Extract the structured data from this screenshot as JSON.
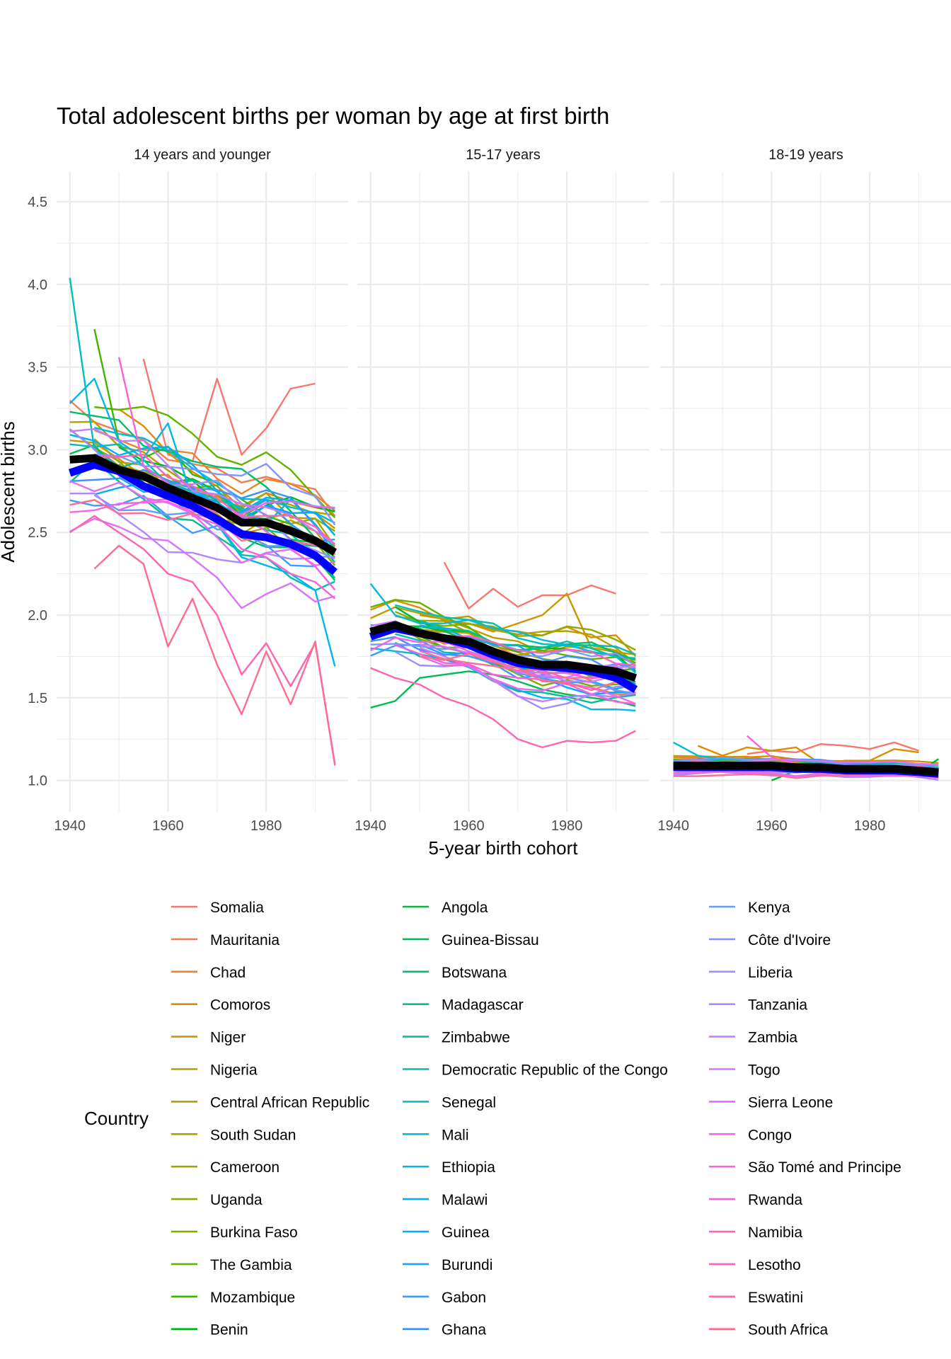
{
  "chart_data": {
    "type": "line",
    "title": "Total adolescent births per woman by age at first birth",
    "xlabel": "5-year birth cohort",
    "ylabel": "Adolescent births",
    "ylim": [
      0.81,
      4.68
    ],
    "xlim": [
      1937.3,
      1996.7
    ],
    "x_ticks": [
      1940,
      1960,
      1980
    ],
    "x_tick_labels": [
      "1940",
      "1960",
      "1980"
    ],
    "y_ticks": [
      1.0,
      1.5,
      2.0,
      2.5,
      3.0,
      3.5,
      4.0,
      4.5
    ],
    "y_tick_labels": [
      "1.0",
      "1.5",
      "2.0",
      "2.5",
      "3.0",
      "3.5",
      "4.0",
      "4.5"
    ],
    "grid": true,
    "legend": {
      "title": "Country",
      "placement": "bottom",
      "columns": 3,
      "entries": [
        {
          "name": "Somalia",
          "color": "#F8766D"
        },
        {
          "name": "Mauritania",
          "color": "#F27D52"
        },
        {
          "name": "Chad",
          "color": "#E9842C"
        },
        {
          "name": "Comoros",
          "color": "#DE8C00"
        },
        {
          "name": "Niger",
          "color": "#D09400"
        },
        {
          "name": "Nigeria",
          "color": "#C09B00"
        },
        {
          "name": "Central African Republic",
          "color": "#B0A100"
        },
        {
          "name": "South Sudan",
          "color": "#B79F00"
        },
        {
          "name": "Cameroon",
          "color": "#A3A500"
        },
        {
          "name": "Uganda",
          "color": "#8EAB00"
        },
        {
          "name": "Burkina Faso",
          "color": "#7CAE00"
        },
        {
          "name": "The Gambia",
          "color": "#64B200"
        },
        {
          "name": "Mozambique",
          "color": "#3DB600"
        },
        {
          "name": "Benin",
          "color": "#00B81F"
        },
        {
          "name": "Angola",
          "color": "#00BA38"
        },
        {
          "name": "Guinea-Bissau",
          "color": "#00BC56"
        },
        {
          "name": "Botswana",
          "color": "#00BE6C"
        },
        {
          "name": "Madagascar",
          "color": "#00C08B"
        },
        {
          "name": "Zimbabwe",
          "color": "#00C0A3"
        },
        {
          "name": "Democratic Republic of the Congo",
          "color": "#00BFB5"
        },
        {
          "name": "Senegal",
          "color": "#00BFC4"
        },
        {
          "name": "Mali",
          "color": "#00BCD8"
        },
        {
          "name": "Ethiopia",
          "color": "#00B8E7"
        },
        {
          "name": "Malawi",
          "color": "#00B0F6"
        },
        {
          "name": "Guinea",
          "color": "#00A9FF"
        },
        {
          "name": "Burundi",
          "color": "#1CA1FF"
        },
        {
          "name": "Gabon",
          "color": "#3D9BFF"
        },
        {
          "name": "Ghana",
          "color": "#3D91FF"
        },
        {
          "name": "Kenya",
          "color": "#619CFF"
        },
        {
          "name": "Côte d'Ivoire",
          "color": "#8494FF"
        },
        {
          "name": "Liberia",
          "color": "#9F8CFF"
        },
        {
          "name": "Tanzania",
          "color": "#B385FF"
        },
        {
          "name": "Zambia",
          "color": "#C77CFF"
        },
        {
          "name": "Togo",
          "color": "#D774FD"
        },
        {
          "name": "Sierra Leone",
          "color": "#E36EF6"
        },
        {
          "name": "Congo",
          "color": "#ED68ED"
        },
        {
          "name": "São Tomé and Principe",
          "color": "#F564E3"
        },
        {
          "name": "Rwanda",
          "color": "#FB61D7"
        },
        {
          "name": "Namibia",
          "color": "#FF62BC"
        },
        {
          "name": "Lesotho",
          "color": "#FF64B0"
        },
        {
          "name": "Eswatini",
          "color": "#FF6A98"
        },
        {
          "name": "South Africa",
          "color": "#FF6C91"
        }
      ]
    },
    "x": [
      1940,
      1945,
      1950,
      1955,
      1960,
      1965,
      1970,
      1975,
      1980,
      1985,
      1990,
      1994
    ],
    "panels": [
      {
        "strip": "14 years and younger",
        "mean_black": [
          2.94,
          2.95,
          2.88,
          2.84,
          2.77,
          2.71,
          2.65,
          2.56,
          2.56,
          2.51,
          2.45,
          2.38
        ],
        "mean_blue": [
          2.86,
          2.91,
          2.87,
          2.78,
          2.72,
          2.66,
          2.58,
          2.49,
          2.47,
          2.43,
          2.36,
          2.26
        ],
        "spread": [
          0.38,
          0.32,
          0.3,
          0.3,
          0.3,
          0.3,
          0.3,
          0.32,
          0.34,
          0.34,
          0.32,
          0.3
        ],
        "series_highlights": [
          {
            "country": "Somalia",
            "values": [
              null,
              null,
              null,
              3.55,
              2.97,
              2.93,
              3.43,
              2.97,
              3.13,
              3.37,
              3.4,
              null
            ]
          },
          {
            "country": "Senegal",
            "values": [
              4.04,
              3.0,
              2.9,
              2.85,
              2.8,
              2.75,
              2.7,
              2.65,
              2.55,
              2.7,
              2.55,
              2.4
            ]
          },
          {
            "country": "Mozambique",
            "values": [
              null,
              3.73,
              3.05,
              2.95,
              3.02,
              2.85,
              2.8,
              2.7,
              2.6,
              2.55,
              2.45,
              2.35
            ]
          },
          {
            "country": "Rwanda",
            "values": [
              null,
              null,
              3.56,
              2.9,
              2.8,
              2.6,
              2.55,
              2.4,
              2.35,
              2.25,
              2.2,
              2.1
            ]
          },
          {
            "country": "Ethiopia",
            "values": [
              3.28,
              3.43,
              3.05,
              2.95,
              3.16,
              2.7,
              2.55,
              2.35,
              2.3,
              2.25,
              2.15,
              1.69
            ]
          },
          {
            "country": "South Africa",
            "values": [
              null,
              2.28,
              2.42,
              2.31,
              1.81,
              2.1,
              1.7,
              1.4,
              1.78,
              1.46,
              1.84,
              1.09
            ]
          },
          {
            "country": "Lesotho",
            "values": [
              2.5,
              2.6,
              2.5,
              2.4,
              2.25,
              2.2,
              2.0,
              1.64,
              1.83,
              1.57,
              1.83,
              1.1
            ]
          }
        ]
      },
      {
        "strip": "15-17 years",
        "mean_black": [
          1.9,
          1.94,
          1.89,
          1.86,
          1.84,
          1.78,
          1.73,
          1.7,
          1.7,
          1.68,
          1.66,
          1.62
        ],
        "mean_blue": [
          1.87,
          1.92,
          1.89,
          1.86,
          1.82,
          1.76,
          1.71,
          1.69,
          1.68,
          1.66,
          1.62,
          1.55
        ],
        "spread": [
          0.16,
          0.15,
          0.15,
          0.15,
          0.15,
          0.16,
          0.17,
          0.18,
          0.19,
          0.19,
          0.18,
          0.16
        ],
        "series_highlights": [
          {
            "country": "Somalia",
            "values": [
              null,
              null,
              null,
              2.32,
              2.04,
              2.16,
              2.05,
              2.12,
              2.12,
              2.18,
              2.13,
              null
            ]
          },
          {
            "country": "Niger",
            "values": [
              null,
              null,
              null,
              null,
              1.95,
              1.9,
              1.95,
              2.0,
              2.13,
              1.8,
              1.78,
              null
            ]
          },
          {
            "country": "Guinea-Bissau",
            "values": [
              1.44,
              1.48,
              1.62,
              1.64,
              1.66,
              1.64,
              1.6,
              1.55,
              1.52,
              1.5,
              1.48,
              1.45
            ]
          },
          {
            "country": "Lesotho",
            "values": [
              1.68,
              1.62,
              1.58,
              1.5,
              1.45,
              1.37,
              1.25,
              1.2,
              1.24,
              1.23,
              1.24,
              1.3
            ]
          },
          {
            "country": "Mali",
            "values": [
              2.19,
              2.0,
              1.95,
              1.95,
              1.97,
              1.92,
              1.9,
              1.85,
              1.82,
              1.78,
              1.75,
              1.65
            ]
          }
        ]
      },
      {
        "strip": "18-19 years",
        "mean_black": [
          1.09,
          1.09,
          1.09,
          1.09,
          1.09,
          1.08,
          1.08,
          1.07,
          1.07,
          1.07,
          1.06,
          1.05
        ],
        "mean_blue": [
          1.08,
          1.08,
          1.08,
          1.08,
          1.08,
          1.07,
          1.07,
          1.06,
          1.06,
          1.06,
          1.05,
          1.04
        ],
        "spread": [
          0.06,
          0.05,
          0.05,
          0.05,
          0.05,
          0.05,
          0.04,
          0.04,
          0.04,
          0.04,
          0.04,
          0.04
        ],
        "series_highlights": [
          {
            "country": "Somalia",
            "values": [
              null,
              null,
              null,
              1.16,
              1.18,
              1.17,
              1.22,
              1.21,
              1.19,
              1.23,
              1.18,
              null
            ]
          },
          {
            "country": "Comoros",
            "values": [
              null,
              1.21,
              1.15,
              1.2,
              1.18,
              1.2,
              1.1,
              1.12,
              1.12,
              1.19,
              1.17,
              null
            ]
          },
          {
            "country": "Mali",
            "values": [
              1.23,
              1.15,
              1.13,
              1.13,
              1.1,
              1.09,
              1.08,
              1.08,
              1.07,
              1.09,
              1.06,
              1.06
            ]
          },
          {
            "country": "Rwanda",
            "values": [
              null,
              null,
              null,
              1.27,
              1.14,
              1.1,
              1.08,
              1.07,
              1.06,
              1.05,
              1.04,
              1.03
            ]
          },
          {
            "country": "Benin",
            "values": [
              null,
              null,
              null,
              null,
              1.0,
              1.06,
              1.07,
              1.07,
              1.07,
              1.06,
              1.05,
              1.13
            ]
          }
        ]
      }
    ]
  }
}
